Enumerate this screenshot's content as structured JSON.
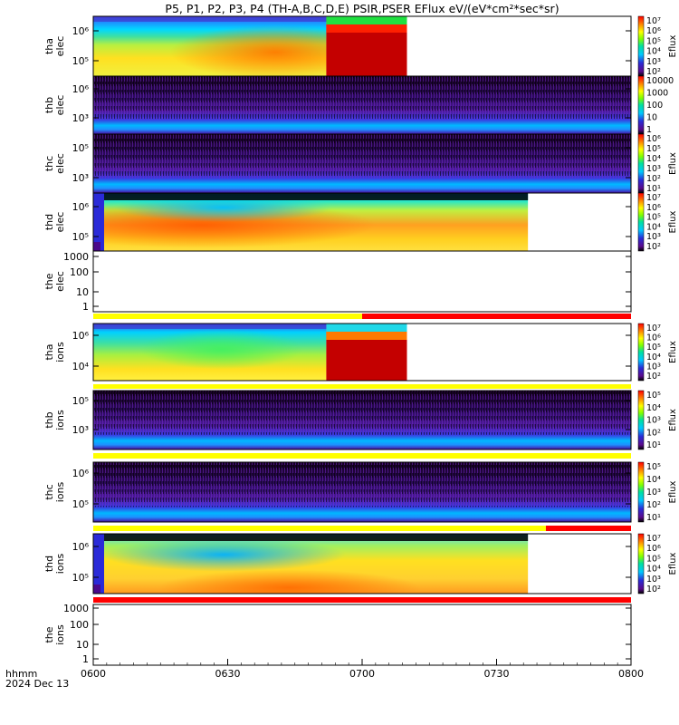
{
  "title": "P5, P1, P2, P3, P4 (TH-A,B,C,D,E) PSIR,PSER EFlux eV/(eV*cm²*sec*sr)",
  "footer": {
    "axis_label": "hhmm",
    "date": "2024 Dec 13"
  },
  "colors": {
    "flag_yellow": "#ffff00",
    "flag_red": "#ff0000",
    "frame": "#000000"
  },
  "chart_data": {
    "type": "heatmap",
    "x_axis": {
      "range": [
        "0600",
        "0800"
      ],
      "ticks": [
        "0600",
        "0630",
        "0700",
        "0730",
        "0800"
      ]
    },
    "panels": [
      {
        "name": "tha-elec",
        "ylabel": [
          "tha",
          "elec"
        ],
        "yscale": "log",
        "yticks": [
          "10⁶",
          "10⁵"
        ],
        "data_coverage": [
          "0600",
          "0710"
        ],
        "colorbar": {
          "label": "Eflux",
          "ticks": [
            "10⁷",
            "10⁶",
            "10⁵",
            "10⁴",
            "10³",
            "10²"
          ]
        }
      },
      {
        "name": "thb-elec",
        "ylabel": [
          "thb",
          "elec"
        ],
        "yscale": "log",
        "yticks": [
          "10⁶",
          "10³"
        ],
        "data_coverage": [
          "0600",
          "0800"
        ],
        "colorbar": {
          "label": "",
          "ticks": [
            "10000",
            "1000",
            "100",
            "10",
            "1"
          ]
        }
      },
      {
        "name": "thc-elec",
        "ylabel": [
          "thc",
          "elec"
        ],
        "yscale": "log",
        "yticks": [
          "10⁵",
          "10³"
        ],
        "data_coverage": [
          "0600",
          "0800"
        ],
        "colorbar": {
          "label": "Eflux",
          "ticks": [
            "10⁶",
            "10⁵",
            "10⁴",
            "10³",
            "10²",
            "10¹"
          ]
        }
      },
      {
        "name": "thd-elec",
        "ylabel": [
          "thd",
          "elec"
        ],
        "yscale": "log",
        "yticks": [
          "10⁶",
          "10⁵"
        ],
        "data_coverage": [
          "0600",
          "0737"
        ],
        "colorbar": {
          "label": "Eflux",
          "ticks": [
            "10⁷",
            "10⁶",
            "10⁵",
            "10⁴",
            "10³",
            "10²"
          ]
        }
      },
      {
        "name": "the-elec",
        "ylabel": [
          "the",
          "elec"
        ],
        "yscale": "log",
        "yticks": [
          "1000",
          "100",
          "10",
          "1"
        ],
        "data_coverage": []
      },
      {
        "name": "tha-ions",
        "ylabel": [
          "tha",
          "ions"
        ],
        "yscale": "log",
        "yticks": [
          "10⁶",
          "10⁴"
        ],
        "data_coverage": [
          "0600",
          "0710"
        ],
        "colorbar": {
          "label": "Eflux",
          "ticks": [
            "10⁷",
            "10⁶",
            "10⁵",
            "10⁴",
            "10³",
            "10²"
          ]
        }
      },
      {
        "name": "thb-ions",
        "ylabel": [
          "thb",
          "ions"
        ],
        "yscale": "log",
        "yticks": [
          "10⁵",
          "10³"
        ],
        "data_coverage": [
          "0600",
          "0800"
        ],
        "colorbar": {
          "label": "Eflux",
          "ticks": [
            "10⁵",
            "10⁴",
            "10³",
            "10²",
            "10¹"
          ]
        }
      },
      {
        "name": "thc-ions",
        "ylabel": [
          "thc",
          "ions"
        ],
        "yscale": "log",
        "yticks": [
          "10⁶",
          "10⁵"
        ],
        "data_coverage": [
          "0600",
          "0800"
        ],
        "colorbar": {
          "label": "Eflux",
          "ticks": [
            "10⁵",
            "10⁴",
            "10³",
            "10²",
            "10¹"
          ]
        }
      },
      {
        "name": "thd-ions",
        "ylabel": [
          "thd",
          "ions"
        ],
        "yscale": "log",
        "yticks": [
          "10⁶",
          "10⁵"
        ],
        "data_coverage": [
          "0600",
          "0737"
        ],
        "colorbar": {
          "label": "Eflux",
          "ticks": [
            "10⁷",
            "10⁶",
            "10⁵",
            "10⁴",
            "10³",
            "10²"
          ]
        }
      },
      {
        "name": "the-ions",
        "ylabel": [
          "the",
          "ions"
        ],
        "yscale": "log",
        "yticks": [
          "1000",
          "100",
          "10",
          "1"
        ],
        "data_coverage": []
      }
    ],
    "flag_bars": [
      {
        "after": "the-elec",
        "segments": [
          {
            "from": "0600",
            "to": "0700",
            "color": "yellow"
          },
          {
            "from": "0700",
            "to": "0800",
            "color": "red"
          }
        ]
      },
      {
        "after": "tha-ions",
        "segments": [
          {
            "from": "0600",
            "to": "0800",
            "color": "yellow"
          }
        ]
      },
      {
        "after": "thb-ions",
        "segments": [
          {
            "from": "0600",
            "to": "0800",
            "color": "yellow"
          }
        ]
      },
      {
        "after": "thc-ions",
        "segments": [
          {
            "from": "0600",
            "to": "0741",
            "color": "yellow"
          },
          {
            "from": "0741",
            "to": "0800",
            "color": "red"
          }
        ]
      },
      {
        "after": "thd-ions",
        "segments": [
          {
            "from": "0600",
            "to": "0800",
            "color": "red"
          }
        ]
      }
    ]
  }
}
